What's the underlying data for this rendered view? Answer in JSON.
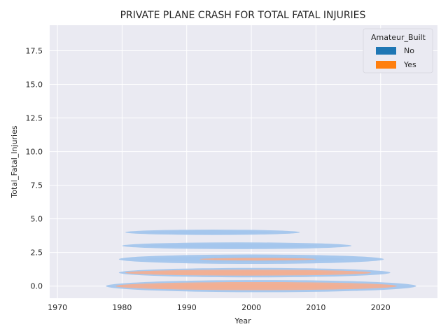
{
  "chart_data": {
    "type": "kde_density",
    "title": "PRIVATE PLANE CRASH FOR TOTAL FATAL INJURIES",
    "xlabel": "Year",
    "ylabel": "Total_Fatal_Injuries",
    "xlim": [
      1968.8,
      2028.8
    ],
    "ylim": [
      -0.9,
      19.4
    ],
    "xticks": [
      1970,
      1980,
      1990,
      2000,
      2010,
      2020
    ],
    "yticks": [
      0.0,
      2.5,
      5.0,
      7.5,
      10.0,
      12.5,
      15.0,
      17.5
    ],
    "xtick_labels": [
      "1970",
      "1980",
      "1990",
      "2000",
      "2010",
      "2020"
    ],
    "ytick_labels": [
      "0.0",
      "2.5",
      "5.0",
      "7.5",
      "10.0",
      "12.5",
      "15.0",
      "17.5"
    ],
    "grid": true,
    "legend": {
      "title": "Amateur_Built",
      "placement": "top-right",
      "entries": [
        {
          "label": "No",
          "color": "#1f77b4"
        },
        {
          "label": "Yes",
          "color": "#ff7f0e"
        }
      ]
    },
    "series": [
      {
        "name": "No",
        "color": "#1f77b4",
        "fill_color": "#a1c4ec",
        "bands": [
          {
            "y": 0.0,
            "x_start": 1977.5,
            "x_end": 2025.5,
            "half_height": 0.45
          },
          {
            "y": 1.0,
            "x_start": 1979.5,
            "x_end": 2021.5,
            "half_height": 0.35
          },
          {
            "y": 2.0,
            "x_start": 1979.5,
            "x_end": 2020.5,
            "half_height": 0.35
          },
          {
            "y": 3.0,
            "x_start": 1980.0,
            "x_end": 2015.5,
            "half_height": 0.25
          },
          {
            "y": 4.0,
            "x_start": 1980.5,
            "x_end": 2007.5,
            "half_height": 0.2
          }
        ]
      },
      {
        "name": "Yes",
        "color": "#ff7f0e",
        "fill_color": "#f5ae90",
        "bands": [
          {
            "y": 0.0,
            "x_start": 1979.0,
            "x_end": 2022.5,
            "half_height": 0.3
          },
          {
            "y": 1.0,
            "x_start": 1980.5,
            "x_end": 2018.5,
            "half_height": 0.22
          },
          {
            "y": 2.0,
            "x_start": 1992.0,
            "x_end": 2010.0,
            "half_height": 0.1
          }
        ]
      }
    ]
  }
}
